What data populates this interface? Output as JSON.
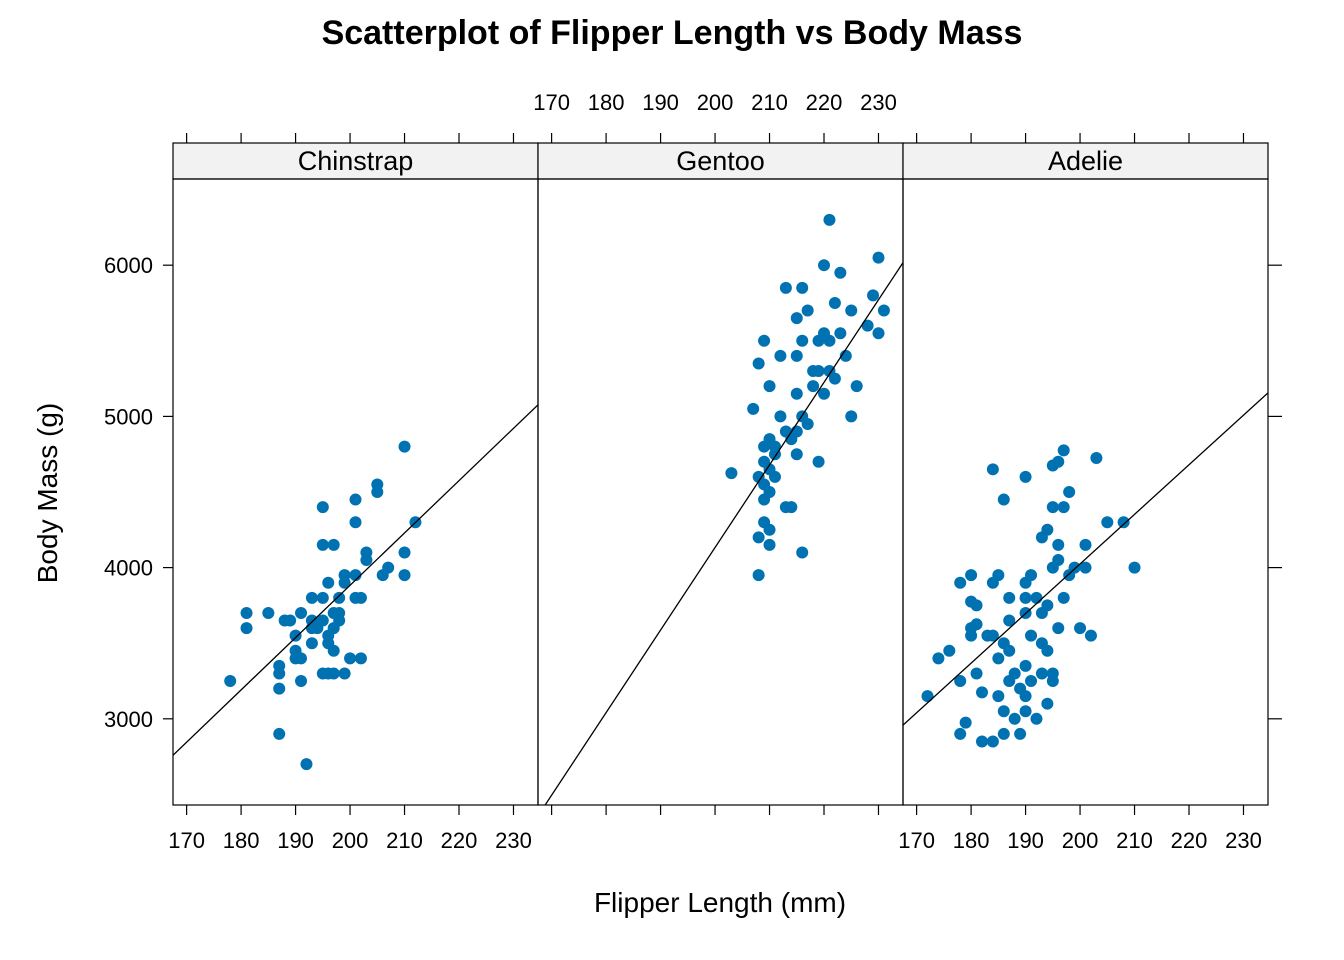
{
  "chart_data": {
    "type": "scatter",
    "title": "Scatterplot of Flipper Length vs Body Mass",
    "xlabel": "Flipper Length (mm)",
    "ylabel": "Body Mass (g)",
    "xlim": [
      167.5,
      234.5
    ],
    "ylim": [
      2430,
      6570
    ],
    "x_ticks": [
      170,
      180,
      190,
      200,
      210,
      220,
      230
    ],
    "x_tick_labels": [
      "170",
      "180",
      "190",
      "200",
      "210",
      "220",
      "230"
    ],
    "y_ticks": [
      3000,
      4000,
      5000,
      6000
    ],
    "y_tick_labels": [
      "3000",
      "4000",
      "5000",
      "6000"
    ],
    "point_color": "#0072B2",
    "line_color": "#000000",
    "strip_color": "#F2F2F2",
    "grid": false,
    "legend": "none",
    "panels": [
      {
        "name": "Chinstrap",
        "fit": {
          "intercept": -3037,
          "slope": 34.6
        },
        "points": [
          [
            178,
            3250
          ],
          [
            181,
            3600
          ],
          [
            181,
            3700
          ],
          [
            185,
            3700
          ],
          [
            187,
            3200
          ],
          [
            187,
            3300
          ],
          [
            187,
            3350
          ],
          [
            187,
            2900
          ],
          [
            188,
            3650
          ],
          [
            189,
            3650
          ],
          [
            190,
            3450
          ],
          [
            190,
            3400
          ],
          [
            190,
            3550
          ],
          [
            191,
            3400
          ],
          [
            191,
            3250
          ],
          [
            191,
            3700
          ],
          [
            192,
            2700
          ],
          [
            193,
            3650
          ],
          [
            193,
            3500
          ],
          [
            193,
            3600
          ],
          [
            193,
            3800
          ],
          [
            194,
            3600
          ],
          [
            195,
            3650
          ],
          [
            195,
            3800
          ],
          [
            195,
            4400
          ],
          [
            195,
            3300
          ],
          [
            195,
            4150
          ],
          [
            196,
            3550
          ],
          [
            196,
            3900
          ],
          [
            196,
            3500
          ],
          [
            196,
            3300
          ],
          [
            197,
            3450
          ],
          [
            197,
            3600
          ],
          [
            197,
            3700
          ],
          [
            197,
            4150
          ],
          [
            197,
            3300
          ],
          [
            198,
            3800
          ],
          [
            198,
            3650
          ],
          [
            198,
            3700
          ],
          [
            199,
            3300
          ],
          [
            199,
            3950
          ],
          [
            199,
            3900
          ],
          [
            200,
            3400
          ],
          [
            201,
            4450
          ],
          [
            201,
            3950
          ],
          [
            201,
            4300
          ],
          [
            201,
            3800
          ],
          [
            202,
            3800
          ],
          [
            202,
            3400
          ],
          [
            203,
            4050
          ],
          [
            203,
            4100
          ],
          [
            205,
            4550
          ],
          [
            205,
            4500
          ],
          [
            206,
            3950
          ],
          [
            207,
            4000
          ],
          [
            210,
            4800
          ],
          [
            210,
            4100
          ],
          [
            210,
            3950
          ],
          [
            212,
            4300
          ]
        ]
      },
      {
        "name": "Gentoo",
        "fit": {
          "intercept": -6787,
          "slope": 54.6
        },
        "points": [
          [
            203,
            4625
          ],
          [
            207,
            5050
          ],
          [
            208,
            4600
          ],
          [
            208,
            5350
          ],
          [
            208,
            4200
          ],
          [
            208,
            3950
          ],
          [
            209,
            5500
          ],
          [
            209,
            4300
          ],
          [
            209,
            4450
          ],
          [
            209,
            4550
          ],
          [
            209,
            4700
          ],
          [
            209,
            4800
          ],
          [
            210,
            4150
          ],
          [
            210,
            4250
          ],
          [
            210,
            4500
          ],
          [
            210,
            4650
          ],
          [
            210,
            4850
          ],
          [
            210,
            5200
          ],
          [
            211,
            4800
          ],
          [
            211,
            4750
          ],
          [
            211,
            4600
          ],
          [
            212,
            5400
          ],
          [
            212,
            5000
          ],
          [
            213,
            4400
          ],
          [
            213,
            5850
          ],
          [
            213,
            4900
          ],
          [
            214,
            4850
          ],
          [
            214,
            4400
          ],
          [
            215,
            5650
          ],
          [
            215,
            5150
          ],
          [
            215,
            4750
          ],
          [
            215,
            5400
          ],
          [
            215,
            4900
          ],
          [
            216,
            5500
          ],
          [
            216,
            5850
          ],
          [
            216,
            4100
          ],
          [
            216,
            5000
          ],
          [
            217,
            5700
          ],
          [
            217,
            4950
          ],
          [
            218,
            5300
          ],
          [
            218,
            5200
          ],
          [
            219,
            5500
          ],
          [
            219,
            4700
          ],
          [
            219,
            5300
          ],
          [
            220,
            5150
          ],
          [
            220,
            5550
          ],
          [
            220,
            6000
          ],
          [
            221,
            6300
          ],
          [
            221,
            5500
          ],
          [
            221,
            5300
          ],
          [
            222,
            5750
          ],
          [
            222,
            5250
          ],
          [
            223,
            5950
          ],
          [
            223,
            5550
          ],
          [
            224,
            5400
          ],
          [
            225,
            5700
          ],
          [
            225,
            5000
          ],
          [
            226,
            5200
          ],
          [
            228,
            5600
          ],
          [
            229,
            5800
          ],
          [
            230,
            6050
          ],
          [
            230,
            5550
          ],
          [
            231,
            5700
          ]
        ]
      },
      {
        "name": "Adelie",
        "fit": {
          "intercept": -2536,
          "slope": 32.8
        },
        "points": [
          [
            172,
            3150
          ],
          [
            174,
            3400
          ],
          [
            176,
            3450
          ],
          [
            178,
            3250
          ],
          [
            178,
            2900
          ],
          [
            178,
            3900
          ],
          [
            179,
            2975
          ],
          [
            180,
            3550
          ],
          [
            180,
            3600
          ],
          [
            180,
            3950
          ],
          [
            180,
            3775
          ],
          [
            181,
            3625
          ],
          [
            181,
            3750
          ],
          [
            181,
            3300
          ],
          [
            182,
            3175
          ],
          [
            182,
            2850
          ],
          [
            183,
            3550
          ],
          [
            184,
            3550
          ],
          [
            184,
            3900
          ],
          [
            184,
            4650
          ],
          [
            184,
            2850
          ],
          [
            185,
            3400
          ],
          [
            185,
            3950
          ],
          [
            185,
            3150
          ],
          [
            186,
            3050
          ],
          [
            186,
            3500
          ],
          [
            186,
            4450
          ],
          [
            186,
            2900
          ],
          [
            187,
            3800
          ],
          [
            187,
            3450
          ],
          [
            187,
            3250
          ],
          [
            187,
            3650
          ],
          [
            188,
            3300
          ],
          [
            188,
            3000
          ],
          [
            189,
            3200
          ],
          [
            189,
            2900
          ],
          [
            190,
            4600
          ],
          [
            190,
            3700
          ],
          [
            190,
            3900
          ],
          [
            190,
            3150
          ],
          [
            190,
            3050
          ],
          [
            190,
            3800
          ],
          [
            190,
            3350
          ],
          [
            191,
            3950
          ],
          [
            191,
            3550
          ],
          [
            191,
            3250
          ],
          [
            192,
            3000
          ],
          [
            192,
            3800
          ],
          [
            193,
            4200
          ],
          [
            193,
            3500
          ],
          [
            193,
            3700
          ],
          [
            193,
            3300
          ],
          [
            194,
            4250
          ],
          [
            194,
            3750
          ],
          [
            194,
            3450
          ],
          [
            194,
            3100
          ],
          [
            195,
            4675
          ],
          [
            195,
            4400
          ],
          [
            195,
            4000
          ],
          [
            195,
            3300
          ],
          [
            195,
            3250
          ],
          [
            196,
            4050
          ],
          [
            196,
            4700
          ],
          [
            196,
            4150
          ],
          [
            196,
            3600
          ],
          [
            197,
            4400
          ],
          [
            197,
            4775
          ],
          [
            197,
            3800
          ],
          [
            198,
            4500
          ],
          [
            198,
            3950
          ],
          [
            199,
            4000
          ],
          [
            200,
            3600
          ],
          [
            201,
            4000
          ],
          [
            201,
            4150
          ],
          [
            202,
            3550
          ],
          [
            203,
            4725
          ],
          [
            205,
            4300
          ],
          [
            208,
            4300
          ],
          [
            210,
            4000
          ]
        ]
      }
    ]
  }
}
